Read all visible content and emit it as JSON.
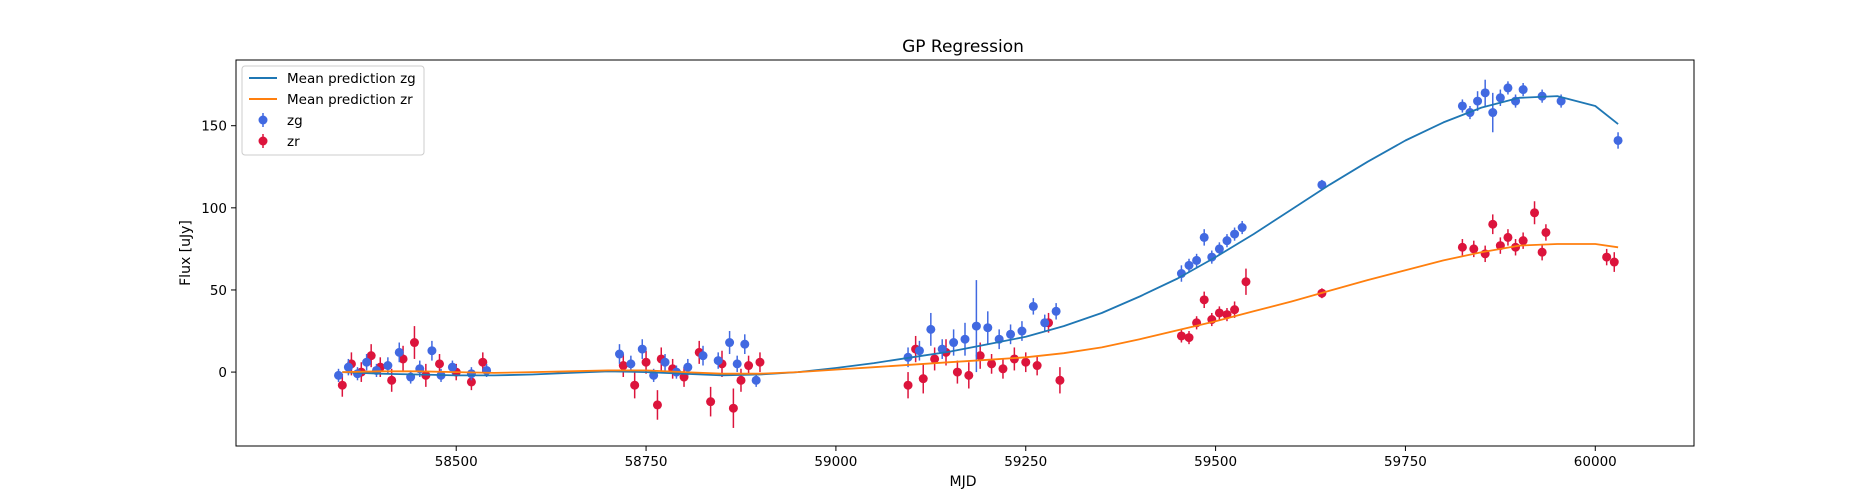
{
  "chart_data": {
    "type": "scatter",
    "title": "GP Regression",
    "xlabel": "MJD",
    "ylabel": "Flux [uJy]",
    "xlim": [
      58210,
      60130
    ],
    "ylim": [
      -45,
      190
    ],
    "xticks": [
      58500,
      58750,
      59000,
      59250,
      59500,
      59750,
      60000
    ],
    "yticks": [
      0,
      50,
      100,
      150
    ],
    "grid": false,
    "legend_position": "top-left",
    "legend": {
      "mean_zg": "Mean prediction zg",
      "mean_zr": "Mean prediction zr",
      "obs_zg": "zg",
      "obs_zr": "zr"
    },
    "colors": {
      "mean_zg": "#1f77b4",
      "mean_zr": "#ff7f0e",
      "obs_zg": "#4169e1",
      "obs_zr": "#dc143c"
    },
    "series": [
      {
        "name": "Mean prediction zg",
        "kind": "line",
        "x": [
          58350,
          58400,
          58450,
          58500,
          58550,
          58600,
          58650,
          58700,
          58750,
          58800,
          58850,
          58900,
          58950,
          59000,
          59050,
          59100,
          59150,
          59200,
          59250,
          59300,
          59350,
          59400,
          59450,
          59500,
          59550,
          59600,
          59650,
          59700,
          59750,
          59800,
          59850,
          59900,
          59950,
          60000,
          60030
        ],
        "y": [
          0,
          -1,
          -1.5,
          -2,
          -2,
          -1.5,
          -0.5,
          0.5,
          0,
          -1,
          -2,
          -1.5,
          0,
          2.5,
          5.5,
          9,
          12.5,
          17,
          21.5,
          28,
          36,
          46,
          57,
          70,
          84,
          99,
          114,
          128,
          141,
          152,
          161,
          167,
          168,
          162,
          151
        ]
      },
      {
        "name": "Mean prediction zr",
        "kind": "line",
        "x": [
          58350,
          58400,
          58450,
          58500,
          58550,
          58600,
          58650,
          58700,
          58750,
          58800,
          58850,
          58900,
          58950,
          59000,
          59050,
          59100,
          59150,
          59200,
          59250,
          59300,
          59350,
          59400,
          59450,
          59500,
          59550,
          59600,
          59650,
          59700,
          59750,
          59800,
          59850,
          59900,
          59950,
          60000,
          60030
        ],
        "y": [
          0,
          0.5,
          0.5,
          0,
          -0.5,
          0,
          0.5,
          1,
          1,
          0,
          -1,
          -1,
          0,
          1.5,
          3,
          4.5,
          6,
          7.5,
          9,
          11.5,
          15,
          20,
          25.5,
          31,
          37,
          43,
          49.5,
          56,
          62,
          68,
          73,
          77,
          78,
          78,
          76
        ]
      },
      {
        "name": "zg",
        "kind": "errorbar",
        "x": [
          58345,
          58358,
          58370,
          58382,
          58395,
          58410,
          58425,
          58440,
          58452,
          58468,
          58480,
          58495,
          58520,
          58540,
          58715,
          58730,
          58745,
          58760,
          58775,
          58790,
          58805,
          58825,
          58845,
          58860,
          58870,
          58880,
          58895,
          59095,
          59110,
          59125,
          59140,
          59155,
          59170,
          59185,
          59200,
          59215,
          59230,
          59245,
          59260,
          59275,
          59290,
          59455,
          59465,
          59475,
          59485,
          59495,
          59505,
          59515,
          59525,
          59535,
          59640,
          59825,
          59835,
          59845,
          59855,
          59865,
          59875,
          59885,
          59895,
          59905,
          59930,
          59955,
          60030
        ],
        "y": [
          -2,
          3,
          -1,
          6,
          1,
          4,
          12,
          -3,
          2,
          13,
          -2,
          3,
          -1,
          1,
          11,
          5,
          14,
          -2,
          6,
          0,
          3,
          10,
          7,
          18,
          5,
          17,
          -5,
          9,
          13,
          26,
          14,
          18,
          20,
          28,
          27,
          20,
          23,
          25,
          40,
          30,
          37,
          60,
          65,
          68,
          82,
          70,
          75,
          80,
          84,
          88,
          114,
          162,
          158,
          165,
          170,
          158,
          167,
          173,
          165,
          172,
          168,
          165,
          141
        ],
        "err": [
          4,
          5,
          4,
          5,
          4,
          5,
          6,
          4,
          5,
          6,
          4,
          4,
          4,
          4,
          6,
          5,
          6,
          4,
          5,
          4,
          5,
          6,
          5,
          7,
          5,
          6,
          4,
          6,
          6,
          10,
          6,
          8,
          10,
          28,
          10,
          6,
          6,
          6,
          5,
          5,
          5,
          5,
          4,
          4,
          5,
          4,
          4,
          4,
          4,
          4,
          3,
          4,
          4,
          6,
          8,
          12,
          5,
          4,
          4,
          4,
          4,
          4,
          5
        ]
      },
      {
        "name": "zr",
        "kind": "errorbar",
        "x": [
          58350,
          58362,
          58375,
          58388,
          58400,
          58415,
          58430,
          58445,
          58460,
          58478,
          58500,
          58520,
          58535,
          58720,
          58735,
          58750,
          58765,
          58770,
          58785,
          58800,
          58820,
          58835,
          58850,
          58865,
          58875,
          58885,
          58900,
          59095,
          59105,
          59115,
          59130,
          59145,
          59160,
          59175,
          59190,
          59205,
          59220,
          59235,
          59250,
          59265,
          59280,
          59295,
          59455,
          59465,
          59475,
          59485,
          59495,
          59505,
          59515,
          59525,
          59540,
          59640,
          59825,
          59840,
          59855,
          59865,
          59875,
          59885,
          59895,
          59905,
          59920,
          59930,
          59935,
          60015,
          60025
        ],
        "y": [
          -8,
          5,
          0,
          10,
          3,
          -5,
          8,
          18,
          -2,
          5,
          0,
          -6,
          6,
          4,
          -8,
          6,
          -20,
          8,
          2,
          -3,
          12,
          -18,
          5,
          -22,
          -5,
          4,
          6,
          -8,
          14,
          -4,
          8,
          12,
          0,
          -2,
          10,
          5,
          2,
          8,
          6,
          4,
          30,
          -5,
          22,
          21,
          30,
          44,
          32,
          36,
          35,
          38,
          55,
          48,
          76,
          75,
          72,
          90,
          77,
          82,
          76,
          80,
          97,
          73,
          85,
          70,
          67
        ],
        "err": [
          7,
          7,
          6,
          7,
          6,
          7,
          8,
          10,
          7,
          6,
          5,
          5,
          6,
          7,
          8,
          7,
          9,
          7,
          6,
          6,
          7,
          9,
          8,
          12,
          7,
          6,
          6,
          8,
          8,
          9,
          7,
          8,
          7,
          8,
          8,
          6,
          6,
          7,
          6,
          6,
          6,
          8,
          4,
          4,
          4,
          5,
          4,
          4,
          4,
          5,
          8,
          3,
          5,
          5,
          5,
          6,
          5,
          5,
          5,
          5,
          7,
          5,
          5,
          5,
          6
        ]
      }
    ]
  }
}
